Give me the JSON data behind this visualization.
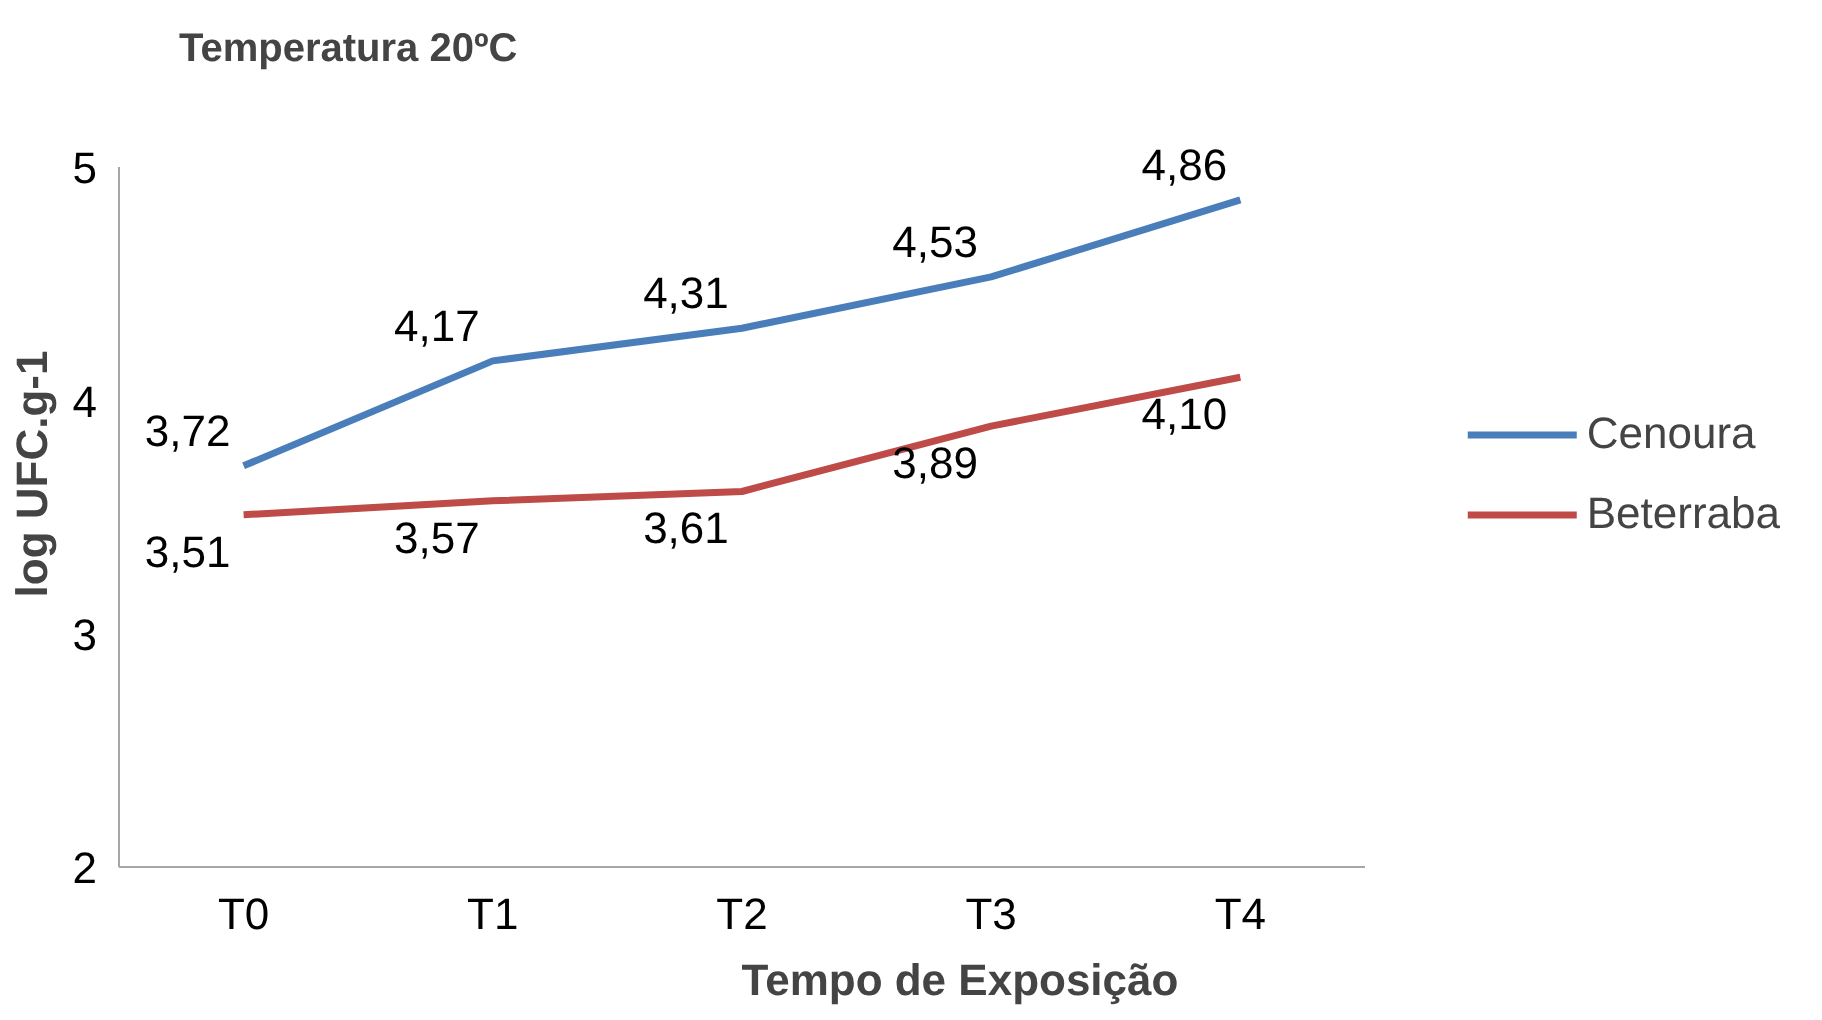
{
  "chart_data": {
    "type": "line",
    "title": "Temperatura 20ºC",
    "xlabel": "Tempo de Exposição",
    "ylabel": "log UFC.g-1",
    "categories": [
      "T0",
      "T1",
      "T2",
      "T3",
      "T4"
    ],
    "series": [
      {
        "name": "Cenoura",
        "color": "#4a7ebb",
        "values": [
          3.72,
          4.17,
          4.31,
          4.53,
          4.86
        ],
        "value_labels": [
          "3,72",
          "4,17",
          "4,31",
          "4,53",
          "4,86"
        ]
      },
      {
        "name": "Beterraba",
        "color": "#be4b48",
        "values": [
          3.51,
          3.57,
          3.61,
          3.89,
          4.1
        ],
        "value_labels": [
          "3,51",
          "3,57",
          "3,61",
          "3,89",
          "4,10"
        ]
      }
    ],
    "ylim": [
      2,
      5
    ],
    "yticks": [
      2,
      3,
      4,
      5
    ],
    "grid": false,
    "legend": "right",
    "marker": "none",
    "line_style": "solid"
  }
}
